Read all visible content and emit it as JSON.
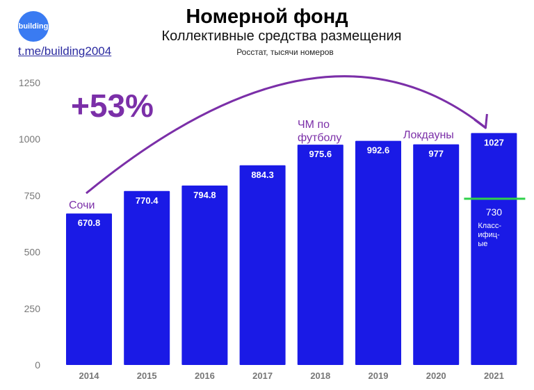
{
  "header": {
    "logo_text": "building",
    "link_text": "t.me/building2004",
    "title": "Номерной фонд",
    "subtitle": "Коллективные средства размещения",
    "source": "Росстат, тысячи номеров"
  },
  "chart_data": {
    "type": "bar",
    "categories": [
      "2014",
      "2015",
      "2016",
      "2017",
      "2018",
      "2019",
      "2020",
      "2021"
    ],
    "values": [
      670.8,
      770.4,
      794.8,
      884.3,
      975.6,
      992.6,
      977,
      1027
    ],
    "value_labels": [
      "670.8",
      "770.4",
      "794.8",
      "884.3",
      "975.6",
      "992.6",
      "977",
      "1027"
    ],
    "ylim": [
      0,
      1250
    ],
    "yticks": [
      0,
      250,
      500,
      750,
      1000,
      1250
    ],
    "bar_color": "#1a1ae6",
    "annotations": {
      "growth": "+53%",
      "sochi": "Сочи",
      "worldcup_line1": "ЧМ по",
      "worldcup_line2": "футболу",
      "lockdowns": "Локдауны",
      "classified_value": 730,
      "classified_value_label": "730",
      "classified_line1": "Класс-",
      "classified_line2": "ифиц-",
      "classified_line3": "ые"
    },
    "annotation_color": "#7b2fa8",
    "marker_color": "#2fd14a"
  }
}
